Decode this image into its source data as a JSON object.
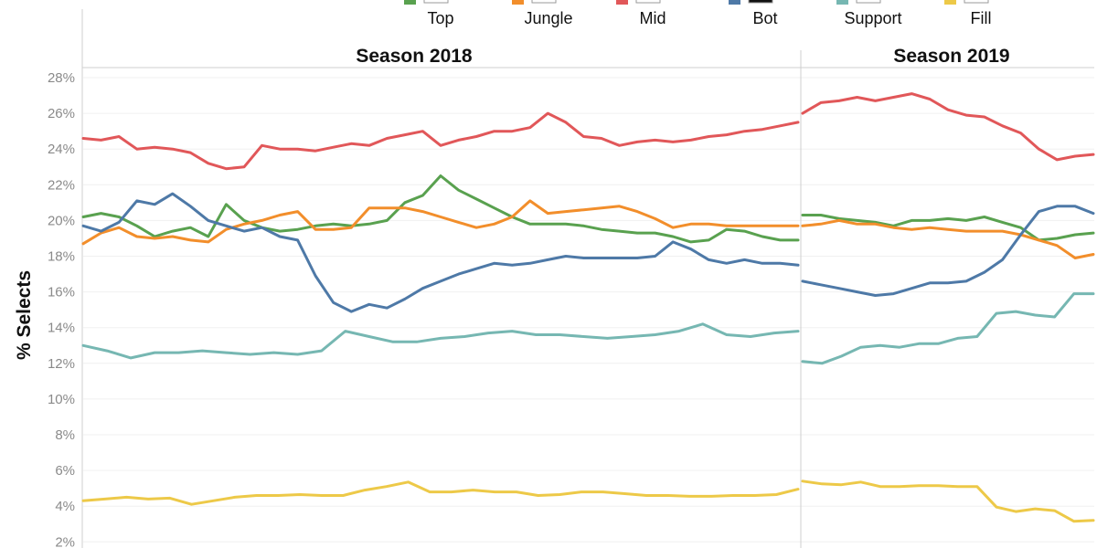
{
  "chart_data": {
    "type": "line",
    "title": "",
    "xlabel": "",
    "ylabel": "% Selects",
    "ylim": [
      2,
      28
    ],
    "yticks": [
      "2%",
      "4%",
      "6%",
      "8%",
      "10%",
      "12%",
      "14%",
      "16%",
      "18%",
      "20%",
      "22%",
      "24%",
      "26%",
      "28%"
    ],
    "ytick_values": [
      2,
      4,
      6,
      8,
      10,
      12,
      14,
      16,
      18,
      20,
      22,
      24,
      26,
      28
    ],
    "grid": true,
    "legend_position": "top",
    "panels": [
      {
        "name": "Season 2018"
      },
      {
        "name": "Season 2019"
      }
    ],
    "series": [
      {
        "name": "Top",
        "color": "#59a14f",
        "season_2018": [
          20.2,
          20.4,
          20.2,
          19.7,
          19.1,
          19.4,
          19.6,
          19.1,
          20.9,
          20.0,
          19.6,
          19.4,
          19.5,
          19.7,
          19.8,
          19.7,
          19.8,
          20.0,
          21.0,
          21.4,
          22.5,
          21.7,
          21.2,
          20.7,
          20.2,
          19.8,
          19.8,
          19.8,
          19.7,
          19.5,
          19.4,
          19.3,
          19.3,
          19.1,
          18.8,
          18.9,
          19.5,
          19.4,
          19.1,
          18.9,
          18.9
        ],
        "season_2019": [
          20.3,
          20.3,
          20.1,
          20.0,
          19.9,
          19.7,
          20.0,
          20.0,
          20.1,
          20.0,
          20.2,
          19.9,
          19.6,
          18.9,
          19.0,
          19.2,
          19.3
        ]
      },
      {
        "name": "Jungle",
        "color": "#f28e2b",
        "season_2018": [
          18.7,
          19.3,
          19.6,
          19.1,
          19.0,
          19.1,
          18.9,
          18.8,
          19.5,
          19.8,
          20.0,
          20.3,
          20.5,
          19.5,
          19.5,
          19.6,
          20.7,
          20.7,
          20.7,
          20.5,
          20.2,
          19.9,
          19.6,
          19.8,
          20.2,
          21.1,
          20.4,
          20.5,
          20.6,
          20.7,
          20.8,
          20.5,
          20.1,
          19.6,
          19.8,
          19.8,
          19.7,
          19.7,
          19.7,
          19.7,
          19.7
        ],
        "season_2019": [
          19.7,
          19.8,
          20.0,
          19.8,
          19.8,
          19.6,
          19.5,
          19.6,
          19.5,
          19.4,
          19.4,
          19.4,
          19.2,
          18.9,
          18.6,
          17.9,
          18.1
        ]
      },
      {
        "name": "Mid",
        "color": "#e15759",
        "season_2018": [
          24.6,
          24.5,
          24.7,
          24.0,
          24.1,
          24.0,
          23.8,
          23.2,
          22.9,
          23.0,
          24.2,
          24.0,
          24.0,
          23.9,
          24.1,
          24.3,
          24.2,
          24.6,
          24.8,
          25.0,
          24.2,
          24.5,
          24.7,
          25.0,
          25.0,
          25.2,
          26.0,
          25.5,
          24.7,
          24.6,
          24.2,
          24.4,
          24.5,
          24.4,
          24.5,
          24.7,
          24.8,
          25.0,
          25.1,
          25.3,
          25.5
        ],
        "season_2019": [
          26.0,
          26.6,
          26.7,
          26.9,
          26.7,
          26.9,
          27.1,
          26.8,
          26.2,
          25.9,
          25.8,
          25.3,
          24.9,
          24.0,
          23.4,
          23.6,
          23.7
        ]
      },
      {
        "name": "Bot",
        "color": "#4e79a7",
        "season_2018": [
          19.7,
          19.4,
          19.9,
          21.1,
          20.9,
          21.5,
          20.8,
          20.0,
          19.7,
          19.4,
          19.6,
          19.1,
          18.9,
          16.9,
          15.4,
          14.9,
          15.3,
          15.1,
          15.6,
          16.2,
          16.6,
          17.0,
          17.3,
          17.6,
          17.5,
          17.6,
          17.8,
          18.0,
          17.9,
          17.9,
          17.9,
          17.9,
          18.0,
          18.8,
          18.4,
          17.8,
          17.6,
          17.8,
          17.6,
          17.6,
          17.5
        ],
        "season_2019": [
          16.6,
          16.4,
          16.2,
          16.0,
          15.8,
          15.9,
          16.2,
          16.5,
          16.5,
          16.6,
          17.1,
          17.8,
          19.2,
          20.5,
          20.8,
          20.8,
          20.4
        ]
      },
      {
        "name": "Support",
        "color": "#76b7b2",
        "season_2018": [
          13.0,
          12.7,
          12.3,
          12.6,
          12.6,
          12.7,
          12.6,
          12.5,
          12.6,
          12.5,
          12.7,
          13.8,
          13.5,
          13.2,
          13.2,
          13.4,
          13.5,
          13.7,
          13.8,
          13.6,
          13.6,
          13.5,
          13.4,
          13.5,
          13.6,
          13.8,
          14.2,
          13.6,
          13.5,
          13.7,
          13.8
        ],
        "season_2019": [
          12.1,
          12.0,
          12.4,
          12.9,
          13.0,
          12.9,
          13.1,
          13.1,
          13.4,
          13.5,
          14.8,
          14.9,
          14.7,
          14.6,
          15.9,
          15.9
        ]
      },
      {
        "name": "Fill",
        "color": "#edc948",
        "season_2018": [
          4.3,
          4.4,
          4.5,
          4.4,
          4.45,
          4.1,
          4.3,
          4.5,
          4.6,
          4.6,
          4.65,
          4.6,
          4.6,
          4.9,
          5.1,
          5.35,
          4.8,
          4.8,
          4.9,
          4.8,
          4.8,
          4.6,
          4.65,
          4.8,
          4.8,
          4.7,
          4.6,
          4.6,
          4.55,
          4.55,
          4.6,
          4.6,
          4.65,
          4.95
        ],
        "season_2019": [
          5.4,
          5.25,
          5.2,
          5.35,
          5.1,
          5.1,
          5.15,
          5.15,
          5.1,
          5.1,
          3.95,
          3.7,
          3.85,
          3.75,
          3.15,
          3.2
        ]
      }
    ]
  },
  "legend": {
    "items": [
      {
        "label": "Top",
        "color": "#59a14f"
      },
      {
        "label": "Jungle",
        "color": "#f28e2b"
      },
      {
        "label": "Mid",
        "color": "#e15759"
      },
      {
        "label": "Bot",
        "color": "#4e79a7"
      },
      {
        "label": "Support",
        "color": "#76b7b2"
      },
      {
        "label": "Fill",
        "color": "#edc948"
      }
    ]
  }
}
